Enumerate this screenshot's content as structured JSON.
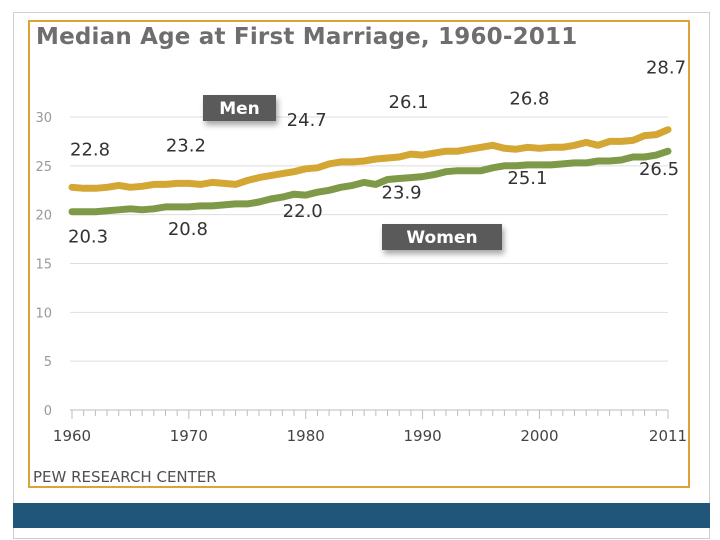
{
  "page": {
    "title": "Median Age at First Marriage, 1960-2011",
    "source": "PEW RESEARCH CENTER"
  },
  "colors": {
    "men": "#d4a634",
    "women": "#7e9a49",
    "border": "#e0a237",
    "bar": "#1f5679",
    "label_bg": "#5a5a5a"
  },
  "chart_data": {
    "type": "line",
    "title": "Median Age at First Marriage, 1960-2011",
    "xlabel": "",
    "ylabel": "",
    "xlim": [
      1960,
      2011
    ],
    "ylim": [
      0,
      30
    ],
    "y_ticks": [
      0,
      5,
      10,
      15,
      20,
      25,
      30
    ],
    "x_tick_labels": [
      "1960",
      "1970",
      "1980",
      "1990",
      "2000",
      "2011"
    ],
    "x_tick_values": [
      1960,
      1970,
      1980,
      1990,
      2000,
      2011
    ],
    "grid": true,
    "series": [
      {
        "name": "Men",
        "color": "#d4a634",
        "x": [
          1960,
          1961,
          1962,
          1963,
          1964,
          1965,
          1966,
          1967,
          1968,
          1969,
          1970,
          1971,
          1972,
          1973,
          1974,
          1975,
          1976,
          1977,
          1978,
          1979,
          1980,
          1981,
          1982,
          1983,
          1984,
          1985,
          1986,
          1987,
          1988,
          1989,
          1990,
          1991,
          1992,
          1993,
          1994,
          1995,
          1996,
          1997,
          1998,
          1999,
          2000,
          2001,
          2002,
          2003,
          2004,
          2005,
          2006,
          2007,
          2008,
          2009,
          2010,
          2011
        ],
        "values": [
          22.8,
          22.7,
          22.7,
          22.8,
          23.0,
          22.8,
          22.9,
          23.1,
          23.1,
          23.2,
          23.2,
          23.1,
          23.3,
          23.2,
          23.1,
          23.5,
          23.8,
          24.0,
          24.2,
          24.4,
          24.7,
          24.8,
          25.2,
          25.4,
          25.4,
          25.5,
          25.7,
          25.8,
          25.9,
          26.2,
          26.1,
          26.3,
          26.5,
          26.5,
          26.7,
          26.9,
          27.1,
          26.8,
          26.7,
          26.9,
          26.8,
          26.9,
          26.9,
          27.1,
          27.4,
          27.1,
          27.5,
          27.5,
          27.6,
          28.1,
          28.2,
          28.7
        ],
        "labels": [
          {
            "x": 1960,
            "text": "22.8"
          },
          {
            "x": 1970,
            "text": "23.2"
          },
          {
            "x": 1980,
            "text": "24.7"
          },
          {
            "x": 1990,
            "text": "26.1"
          },
          {
            "x": 2000,
            "text": "26.8"
          },
          {
            "x": 2011,
            "text": "28.7"
          }
        ]
      },
      {
        "name": "Women",
        "color": "#7e9a49",
        "x": [
          1960,
          1961,
          1962,
          1963,
          1964,
          1965,
          1966,
          1967,
          1968,
          1969,
          1970,
          1971,
          1972,
          1973,
          1974,
          1975,
          1976,
          1977,
          1978,
          1979,
          1980,
          1981,
          1982,
          1983,
          1984,
          1985,
          1986,
          1987,
          1988,
          1989,
          1990,
          1991,
          1992,
          1993,
          1994,
          1995,
          1996,
          1997,
          1998,
          1999,
          2000,
          2001,
          2002,
          2003,
          2004,
          2005,
          2006,
          2007,
          2008,
          2009,
          2010,
          2011
        ],
        "values": [
          20.3,
          20.3,
          20.3,
          20.4,
          20.5,
          20.6,
          20.5,
          20.6,
          20.8,
          20.8,
          20.8,
          20.9,
          20.9,
          21.0,
          21.1,
          21.1,
          21.3,
          21.6,
          21.8,
          22.1,
          22.0,
          22.3,
          22.5,
          22.8,
          23.0,
          23.3,
          23.1,
          23.6,
          23.7,
          23.8,
          23.9,
          24.1,
          24.4,
          24.5,
          24.5,
          24.5,
          24.8,
          25.0,
          25.0,
          25.1,
          25.1,
          25.1,
          25.2,
          25.3,
          25.3,
          25.5,
          25.5,
          25.6,
          25.9,
          25.9,
          26.1,
          26.5
        ],
        "labels": [
          {
            "x": 1960,
            "text": "20.3"
          },
          {
            "x": 1970,
            "text": "20.8"
          },
          {
            "x": 1980,
            "text": "22.0"
          },
          {
            "x": 1990,
            "text": "23.9"
          },
          {
            "x": 2000,
            "text": "25.1"
          },
          {
            "x": 2011,
            "text": "26.5"
          }
        ]
      }
    ],
    "legend_labels": [
      "Men",
      "Women"
    ]
  }
}
